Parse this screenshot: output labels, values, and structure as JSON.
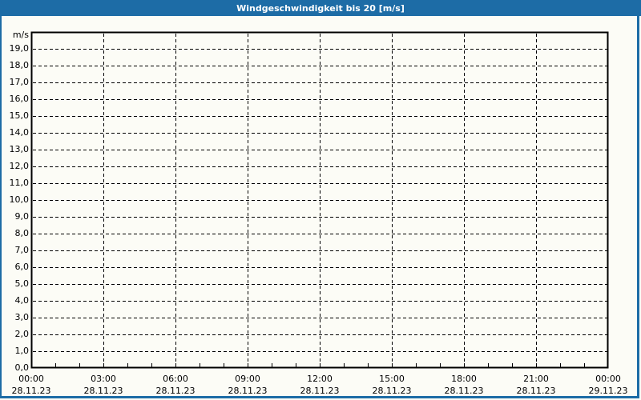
{
  "window": {
    "title": "Windgeschwindigkeit bis 20 [m/s]"
  },
  "colors": {
    "chrome": "#1d6ca6",
    "title_text": "#ffffff",
    "background": "#fcfcf6",
    "plot_background": "#fcfcf6",
    "grid_line": "#000000",
    "frame_line": "#000000",
    "axis_text": "#000000"
  },
  "chart_data": {
    "type": "line",
    "title": "Windgeschwindigkeit bis 20 [m/s]",
    "xlabel": "",
    "ylabel": "m/s",
    "ylim": [
      0,
      20
    ],
    "ytick_step": 1.0,
    "ytick_labels": [
      "0,0",
      "1,0",
      "2,0",
      "3,0",
      "4,0",
      "5,0",
      "6,0",
      "7,0",
      "8,0",
      "9,0",
      "10,0",
      "11,0",
      "12,0",
      "13,0",
      "14,0",
      "15,0",
      "16,0",
      "17,0",
      "18,0",
      "19,0"
    ],
    "xlim_hours": [
      0,
      24
    ],
    "x_major_step_hours": 3,
    "x_minor_step_hours": 1,
    "x_major_ticks": [
      {
        "time": "00:00",
        "date": "28.11.23"
      },
      {
        "time": "03:00",
        "date": "28.11.23"
      },
      {
        "time": "06:00",
        "date": "28.11.23"
      },
      {
        "time": "09:00",
        "date": "28.11.23"
      },
      {
        "time": "12:00",
        "date": "28.11.23"
      },
      {
        "time": "15:00",
        "date": "28.11.23"
      },
      {
        "time": "18:00",
        "date": "28.11.23"
      },
      {
        "time": "21:00",
        "date": "28.11.23"
      },
      {
        "time": "00:00",
        "date": "29.11.23"
      }
    ],
    "grid": true,
    "grid_style": "dashed",
    "legend": "none",
    "series": []
  }
}
